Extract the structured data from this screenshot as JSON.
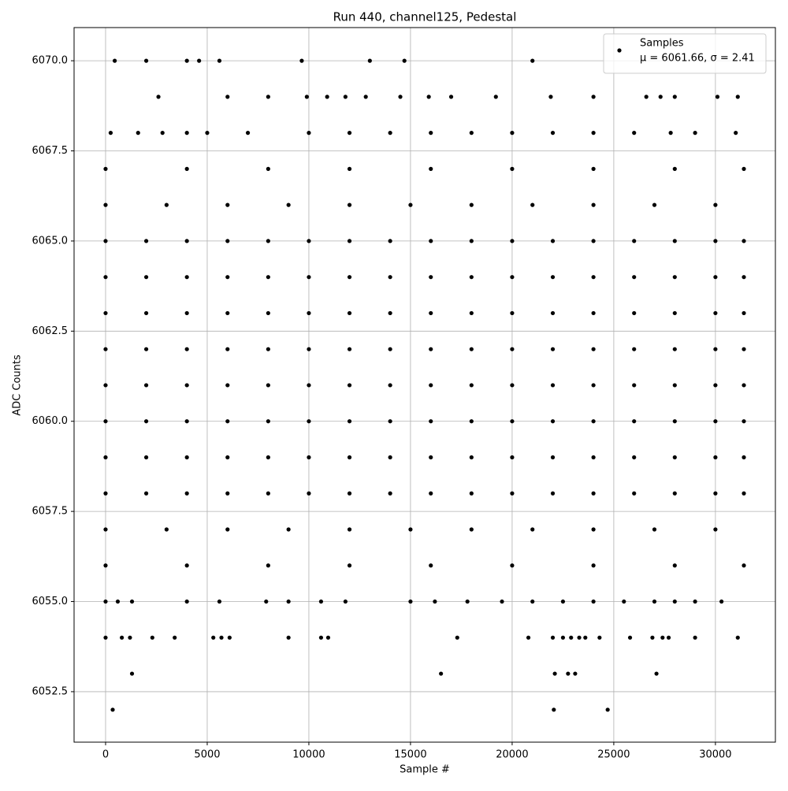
{
  "chart_data": {
    "type": "scatter",
    "title": "Run 440, channel125, Pedestal",
    "x_label": "Sample #",
    "y_label": "ADC Counts",
    "xlim": [
      -1550,
      32950
    ],
    "ylim": [
      6051.1,
      6070.92
    ],
    "xticks": [
      0,
      5000,
      10000,
      15000,
      20000,
      25000,
      30000
    ],
    "yticks": [
      6052.5,
      {
        "value": 6055,
        "label": "6055.0"
      },
      6057.5,
      {
        "value": 6060,
        "label": "6060.0"
      },
      6062.5,
      {
        "value": 6065,
        "label": "6065.0"
      },
      6067.5,
      {
        "value": 6070,
        "label": "6070.0"
      }
    ],
    "grid": true,
    "legend": "upper right",
    "legend_note": "μ = 6061.66, σ = 2.41",
    "series": [
      {
        "name": "Samples",
        "color": "#000000",
        "x": [
          0,
          2000,
          4000,
          6000,
          8000,
          10000,
          12000,
          14000,
          16000,
          18000,
          20000,
          22000,
          24000,
          26000,
          28000,
          30000,
          31400,
          0,
          2000,
          4000,
          6000,
          8000,
          10000,
          12000,
          14000,
          16000,
          18000,
          20000,
          22000,
          24000,
          26000,
          28000,
          30000,
          31400,
          0,
          2000,
          4000,
          6000,
          8000,
          10000,
          12000,
          14000,
          16000,
          18000,
          20000,
          22000,
          24000,
          26000,
          28000,
          30000,
          31400,
          0,
          2000,
          4000,
          6000,
          8000,
          10000,
          12000,
          14000,
          16000,
          18000,
          20000,
          22000,
          24000,
          26000,
          28000,
          30000,
          31400,
          0,
          2000,
          4000,
          6000,
          8000,
          10000,
          12000,
          14000,
          16000,
          18000,
          20000,
          22000,
          24000,
          26000,
          28000,
          30000,
          31400,
          0,
          2000,
          4000,
          6000,
          8000,
          10000,
          12000,
          14000,
          16000,
          18000,
          20000,
          22000,
          24000,
          26000,
          28000,
          30000,
          31400,
          0,
          2000,
          4000,
          6000,
          8000,
          10000,
          12000,
          14000,
          16000,
          18000,
          20000,
          22000,
          24000,
          26000,
          28000,
          30000,
          31400,
          0,
          2000,
          4000,
          6000,
          8000,
          10000,
          12000,
          14000,
          16000,
          18000,
          20000,
          22000,
          24000,
          26000,
          28000,
          30000,
          31400,
          0,
          3000,
          6000,
          9000,
          12000,
          15000,
          18000,
          21000,
          24000,
          27000,
          30000,
          0,
          3000,
          6000,
          9000,
          12000,
          15000,
          18000,
          21000,
          24000,
          27000,
          30000,
          0,
          4000,
          8000,
          12000,
          16000,
          20000,
          24000,
          28000,
          31400,
          0,
          4000,
          8000,
          12000,
          16000,
          20000,
          24000,
          28000,
          31400,
          450,
          2000,
          4000,
          4600,
          5600,
          9650,
          13000,
          14700,
          21000,
          2600,
          6000,
          8000,
          9900,
          10900,
          11800,
          12800,
          14500,
          15900,
          17000,
          19200,
          21900,
          24000,
          26600,
          27300,
          28000,
          30100,
          31100,
          250,
          1600,
          2800,
          4000,
          5000,
          7000,
          10000,
          12000,
          14000,
          16000,
          18000,
          20000,
          22000,
          24000,
          26000,
          27800,
          29000,
          31000,
          0,
          600,
          1300,
          4000,
          5600,
          7900,
          9000,
          10600,
          11800,
          15000,
          16200,
          17800,
          19500,
          21000,
          22500,
          24000,
          25500,
          27000,
          28000,
          29000,
          30300,
          0,
          800,
          1200,
          2300,
          3400,
          5300,
          5700,
          6100,
          9000,
          10600,
          10950,
          17300,
          20800,
          22000,
          22500,
          22900,
          23300,
          23600,
          24300,
          25800,
          26900,
          27400,
          27700,
          29000,
          31100,
          1300,
          16500,
          22100,
          22750,
          23100,
          27100,
          350,
          22050,
          24700
        ],
        "values": [
          6058,
          6058,
          6058,
          6058,
          6058,
          6058,
          6058,
          6058,
          6058,
          6058,
          6058,
          6058,
          6058,
          6058,
          6058,
          6058,
          6058,
          6059,
          6059,
          6059,
          6059,
          6059,
          6059,
          6059,
          6059,
          6059,
          6059,
          6059,
          6059,
          6059,
          6059,
          6059,
          6059,
          6059,
          6060,
          6060,
          6060,
          6060,
          6060,
          6060,
          6060,
          6060,
          6060,
          6060,
          6060,
          6060,
          6060,
          6060,
          6060,
          6060,
          6060,
          6061,
          6061,
          6061,
          6061,
          6061,
          6061,
          6061,
          6061,
          6061,
          6061,
          6061,
          6061,
          6061,
          6061,
          6061,
          6061,
          6061,
          6062,
          6062,
          6062,
          6062,
          6062,
          6062,
          6062,
          6062,
          6062,
          6062,
          6062,
          6062,
          6062,
          6062,
          6062,
          6062,
          6062,
          6063,
          6063,
          6063,
          6063,
          6063,
          6063,
          6063,
          6063,
          6063,
          6063,
          6063,
          6063,
          6063,
          6063,
          6063,
          6063,
          6063,
          6064,
          6064,
          6064,
          6064,
          6064,
          6064,
          6064,
          6064,
          6064,
          6064,
          6064,
          6064,
          6064,
          6064,
          6064,
          6064,
          6064,
          6065,
          6065,
          6065,
          6065,
          6065,
          6065,
          6065,
          6065,
          6065,
          6065,
          6065,
          6065,
          6065,
          6065,
          6065,
          6065,
          6065,
          6066,
          6066,
          6066,
          6066,
          6066,
          6066,
          6066,
          6066,
          6066,
          6066,
          6066,
          6057,
          6057,
          6057,
          6057,
          6057,
          6057,
          6057,
          6057,
          6057,
          6057,
          6057,
          6067,
          6067,
          6067,
          6067,
          6067,
          6067,
          6067,
          6067,
          6067,
          6056,
          6056,
          6056,
          6056,
          6056,
          6056,
          6056,
          6056,
          6056,
          6070,
          6070,
          6070,
          6070,
          6070,
          6070,
          6070,
          6070,
          6070,
          6069,
          6069,
          6069,
          6069,
          6069,
          6069,
          6069,
          6069,
          6069,
          6069,
          6069,
          6069,
          6069,
          6069,
          6069,
          6069,
          6069,
          6069,
          6068,
          6068,
          6068,
          6068,
          6068,
          6068,
          6068,
          6068,
          6068,
          6068,
          6068,
          6068,
          6068,
          6068,
          6068,
          6068,
          6068,
          6068,
          6055,
          6055,
          6055,
          6055,
          6055,
          6055,
          6055,
          6055,
          6055,
          6055,
          6055,
          6055,
          6055,
          6055,
          6055,
          6055,
          6055,
          6055,
          6055,
          6055,
          6055,
          6054,
          6054,
          6054,
          6054,
          6054,
          6054,
          6054,
          6054,
          6054,
          6054,
          6054,
          6054,
          6054,
          6054,
          6054,
          6054,
          6054,
          6054,
          6054,
          6054,
          6054,
          6054,
          6054,
          6054,
          6054,
          6053,
          6053,
          6053,
          6053,
          6053,
          6053,
          6052,
          6052,
          6052
        ]
      }
    ]
  }
}
